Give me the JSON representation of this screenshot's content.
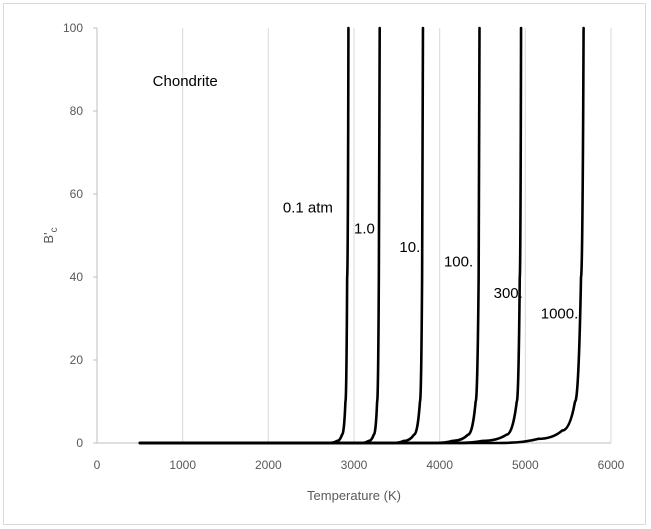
{
  "chart_data": {
    "type": "line",
    "title": "",
    "xlabel": "Temperature  (K)",
    "ylabel": "B'c",
    "ylabel_main": "B'",
    "ylabel_sub": "c",
    "xlim": [
      0,
      6000
    ],
    "ylim": [
      0,
      100
    ],
    "xticks": [
      "0",
      "1000",
      "2000",
      "3000",
      "4000",
      "5000",
      "6000"
    ],
    "yticks": [
      "0",
      "20",
      "40",
      "60",
      "80",
      "100"
    ],
    "grid": "vertical",
    "legend": "none",
    "series_color": "#000000",
    "annotations": [
      {
        "text": "Chondrite",
        "x": 650,
        "y": 86
      },
      {
        "text": "0.1 atm",
        "x": 2170,
        "y": 55.5
      },
      {
        "text": "1.0",
        "x": 3000,
        "y": 50.5
      },
      {
        "text": "10.",
        "x": 3530,
        "y": 46
      },
      {
        "text": "100.",
        "x": 4050,
        "y": 42.5
      },
      {
        "text": "300.",
        "x": 4630,
        "y": 35
      },
      {
        "text": "1000.",
        "x": 5180,
        "y": 30
      }
    ],
    "series": [
      {
        "values": [
          [
            500,
            0
          ],
          [
            2700,
            0
          ],
          [
            2800,
            0.5
          ],
          [
            2860,
            2
          ],
          [
            2900,
            10
          ],
          [
            2920,
            40
          ],
          [
            2935,
            100
          ]
        ]
      },
      {
        "values": [
          [
            500,
            0
          ],
          [
            3080,
            0
          ],
          [
            3170,
            0.5
          ],
          [
            3230,
            2
          ],
          [
            3270,
            10
          ],
          [
            3290,
            40
          ],
          [
            3300,
            100
          ]
        ]
      },
      {
        "values": [
          [
            500,
            0
          ],
          [
            3450,
            0
          ],
          [
            3580,
            0.5
          ],
          [
            3700,
            2
          ],
          [
            3770,
            10
          ],
          [
            3795,
            40
          ],
          [
            3805,
            100
          ]
        ]
      },
      {
        "values": [
          [
            500,
            0
          ],
          [
            3950,
            0
          ],
          [
            4150,
            0.5
          ],
          [
            4330,
            2
          ],
          [
            4420,
            10
          ],
          [
            4455,
            40
          ],
          [
            4465,
            100
          ]
        ]
      },
      {
        "values": [
          [
            500,
            0
          ],
          [
            4200,
            0
          ],
          [
            4500,
            0.5
          ],
          [
            4780,
            2
          ],
          [
            4900,
            10
          ],
          [
            4935,
            40
          ],
          [
            4950,
            100
          ]
        ]
      },
      {
        "values": [
          [
            500,
            0
          ],
          [
            4700,
            0
          ],
          [
            5150,
            1
          ],
          [
            5430,
            3
          ],
          [
            5580,
            10
          ],
          [
            5650,
            40
          ],
          [
            5680,
            100
          ]
        ]
      }
    ]
  }
}
